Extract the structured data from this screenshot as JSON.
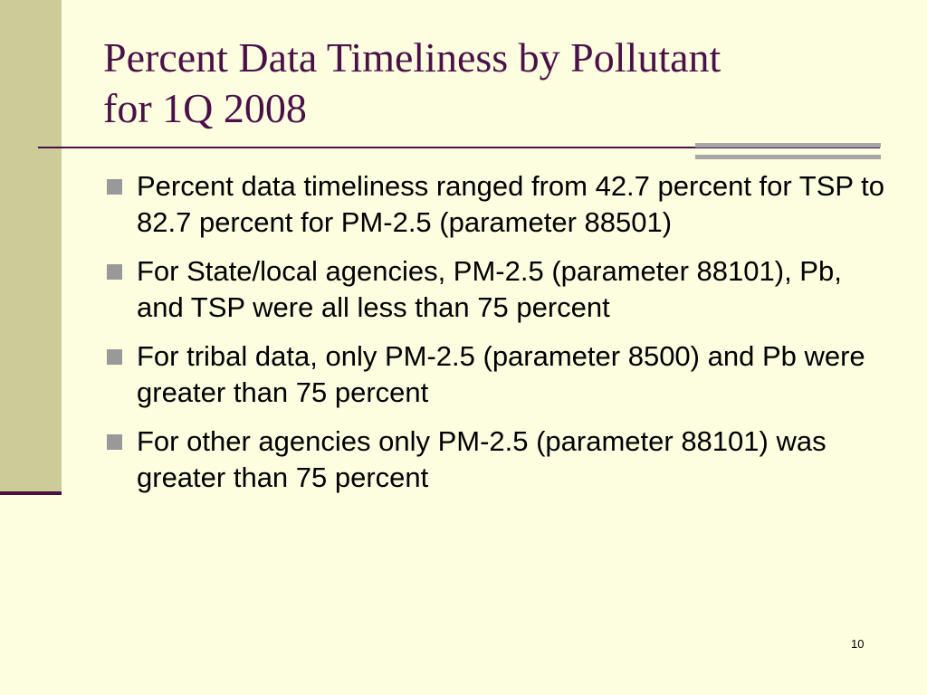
{
  "slide": {
    "title_lines": [
      "Percent Data Timeliness by Pollutant",
      "for 1Q 2008"
    ],
    "bullets": [
      "Percent data timeliness ranged from 42.7 percent for TSP to 82.7 percent for PM-2.5 (parameter 88501)",
      " For State/local agencies, PM-2.5 (parameter 88101), Pb, and TSP were all less than 75 percent",
      "For tribal data, only PM-2.5 (parameter 8500) and Pb were greater than 75 percent",
      "For other agencies only PM-2.5 (parameter 88101) was greater than 75 percent"
    ],
    "page_number": "10",
    "bullet_icon": "square-bullet-icon"
  },
  "colors": {
    "background": "#fdfde0",
    "sidebar": "#cccc99",
    "title": "#4a1048",
    "accent_gray": "#a6a6a6",
    "bullet": "#999999",
    "body_text": "#000000"
  }
}
